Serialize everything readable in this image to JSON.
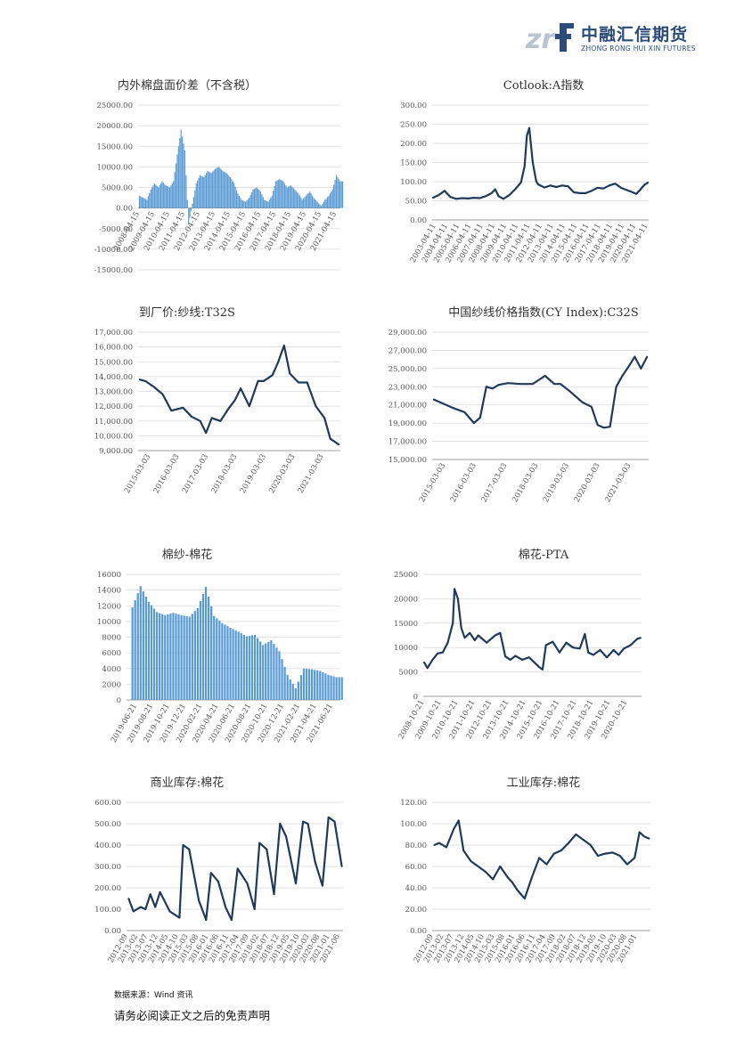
{
  "logo": {
    "mark": "zrf",
    "cn": "中融汇信期货",
    "en": "ZHONG RONG HUI XIN FUTURES"
  },
  "footer": {
    "source": "数据来源：Wind 资讯",
    "disclaimer": "请务必阅读正文之后的免责声明"
  },
  "colors": {
    "line": "#1f3a5a",
    "bar": "#5b9bd5",
    "grid": "#d9d9d9",
    "axis": "#888888"
  },
  "chart_data": [
    {
      "type": "bar",
      "title": "内外棉盘面价差（不含税）",
      "y_ticks": [
        "25000.00",
        "20000.00",
        "15000.00",
        "10000.00",
        "5000.00",
        "0.00",
        "-5000.00",
        "-10000.00",
        "-15000.00"
      ],
      "ylim": [
        -15000,
        25000
      ],
      "x_tick_labels": [
        "2008-04-15",
        "2009-04-15",
        "2010-04-15",
        "2011-04-15",
        "2012-04-15",
        "2013-04-15",
        "2014-04-15",
        "2015-04-15",
        "2016-04-15",
        "2017-04-15",
        "2018-04-15",
        "2019-04-15",
        "2020-04-15",
        "2021-04-15"
      ],
      "x": [
        "2008-04",
        "2008-07",
        "2008-10",
        "2009-01",
        "2009-04",
        "2009-07",
        "2009-10",
        "2010-01",
        "2010-04",
        "2010-07",
        "2010-10",
        "2011-01",
        "2011-04",
        "2011-07",
        "2011-10",
        "2012-01",
        "2012-04",
        "2012-07",
        "2012-10",
        "2013-01",
        "2013-04",
        "2013-07",
        "2013-10",
        "2014-01",
        "2014-04",
        "2014-07",
        "2014-10",
        "2015-01",
        "2015-04",
        "2015-07",
        "2015-10",
        "2016-01",
        "2016-04",
        "2016-07",
        "2016-10",
        "2017-01",
        "2017-04",
        "2017-07",
        "2017-10",
        "2018-01",
        "2018-04",
        "2018-07",
        "2018-10",
        "2019-01",
        "2019-04",
        "2019-07",
        "2019-10",
        "2020-01",
        "2020-04",
        "2020-07",
        "2020-10",
        "2021-01",
        "2021-04",
        "2021-07"
      ],
      "values": [
        3000,
        2500,
        2000,
        4500,
        6000,
        5000,
        6500,
        5500,
        5000,
        6500,
        13000,
        19000,
        14000,
        -4000,
        1000,
        6000,
        8000,
        7500,
        9000,
        8500,
        9500,
        10000,
        9000,
        8500,
        7500,
        6000,
        3500,
        2000,
        1500,
        2500,
        4500,
        5000,
        4000,
        2000,
        1500,
        3000,
        6500,
        7000,
        6500,
        5000,
        5500,
        4500,
        3500,
        2000,
        3000,
        4000,
        2500,
        1500,
        500,
        2000,
        3000,
        4500,
        8000,
        6500
      ]
    },
    {
      "type": "line",
      "title": "Cotlook:A指数",
      "y_ticks": [
        "300.00",
        "250.00",
        "200.00",
        "150.00",
        "100.00",
        "50.00",
        "0.00"
      ],
      "ylim": [
        0,
        300
      ],
      "x_tick_labels": [
        "2003-04-11",
        "2004-04-11",
        "2005-04-11",
        "2006-04-11",
        "2007-04-11",
        "2008-04-11",
        "2009-04-11",
        "2010-04-11",
        "2011-04-11",
        "2012-04-11",
        "2013-04-11",
        "2014-04-11",
        "2015-04-11",
        "2016-04-11",
        "2017-04-11",
        "2018-04-11",
        "2019-04-11",
        "2020-04-11",
        "2021-04-11"
      ],
      "x": [
        2003.0,
        2003.5,
        2004.0,
        2004.5,
        2005.0,
        2005.5,
        2006.0,
        2006.5,
        2007.0,
        2007.5,
        2008.0,
        2008.3,
        2008.6,
        2009.0,
        2009.5,
        2010.0,
        2010.5,
        2010.8,
        2011.0,
        2011.2,
        2011.5,
        2011.8,
        2012.0,
        2012.5,
        2013.0,
        2013.5,
        2014.0,
        2014.5,
        2015.0,
        2015.5,
        2016.0,
        2016.5,
        2017.0,
        2017.5,
        2018.0,
        2018.5,
        2019.0,
        2019.5,
        2020.0,
        2020.3,
        2020.6,
        2021.0,
        2021.3
      ],
      "values": [
        58,
        65,
        76,
        60,
        55,
        57,
        56,
        58,
        57,
        62,
        70,
        80,
        62,
        55,
        65,
        80,
        98,
        140,
        220,
        240,
        150,
        100,
        92,
        85,
        90,
        86,
        90,
        88,
        72,
        70,
        70,
        76,
        84,
        82,
        90,
        95,
        84,
        78,
        72,
        68,
        78,
        92,
        98
      ]
    },
    {
      "type": "line",
      "title": "到厂价:纱线:T32S",
      "y_ticks": [
        "17,000.00",
        "16,000.00",
        "15,000.00",
        "14,000.00",
        "13,000.00",
        "12,000.00",
        "11,000.00",
        "10,000.00",
        "9,000.00"
      ],
      "ylim": [
        9000,
        17000
      ],
      "x_tick_labels": [
        "2015-03-03",
        "2016-03-03",
        "2017-03-03",
        "2018-03-03",
        "2019-03-03",
        "2020-03-03",
        "2021-03-03"
      ],
      "x": [
        2014.8,
        2015.0,
        2015.3,
        2015.6,
        2015.9,
        2016.1,
        2016.3,
        2016.6,
        2016.9,
        2017.1,
        2017.3,
        2017.6,
        2017.9,
        2018.1,
        2018.3,
        2018.6,
        2018.9,
        2019.1,
        2019.4,
        2019.6,
        2019.8,
        2020.0,
        2020.3,
        2020.6,
        2020.9,
        2021.2,
        2021.4,
        2021.7
      ],
      "values": [
        13800,
        13700,
        13300,
        12800,
        11700,
        11800,
        11900,
        11300,
        11000,
        10200,
        11200,
        11000,
        11900,
        12400,
        13200,
        12000,
        13700,
        13700,
        14100,
        15000,
        16100,
        14200,
        13600,
        13600,
        12000,
        11200,
        9800,
        9400
      ]
    },
    {
      "type": "line",
      "title": "中国纱线价格指数(CY Index):C32S",
      "y_ticks": [
        "29,000.00",
        "27,000.00",
        "25,000.00",
        "23,000.00",
        "21,000.00",
        "19,000.00",
        "17,000.00",
        "15,000.00"
      ],
      "ylim": [
        15000,
        29000
      ],
      "x_tick_labels": [
        "2015-03-03",
        "2016-03-03",
        "2017-03-03",
        "2018-03-03",
        "2019-03-03",
        "2020-03-03",
        "2021-03-03"
      ],
      "x": [
        2014.8,
        2015.0,
        2015.4,
        2015.8,
        2016.1,
        2016.3,
        2016.5,
        2016.7,
        2016.9,
        2017.2,
        2017.6,
        2018.0,
        2018.4,
        2018.7,
        2018.9,
        2019.2,
        2019.6,
        2019.9,
        2020.1,
        2020.3,
        2020.5,
        2020.7,
        2020.9,
        2021.1,
        2021.3,
        2021.5,
        2021.7
      ],
      "values": [
        21600,
        21300,
        20700,
        20200,
        19000,
        19600,
        23000,
        22800,
        23200,
        23400,
        23300,
        23300,
        24200,
        23300,
        23300,
        22500,
        21300,
        20800,
        18800,
        18500,
        18600,
        23000,
        24200,
        25200,
        26300,
        25000,
        26300
      ]
    },
    {
      "type": "bar",
      "title": "棉纱-棉花",
      "y_ticks": [
        "16000",
        "14000",
        "12000",
        "10000",
        "8000",
        "6000",
        "4000",
        "2000",
        "0"
      ],
      "ylim": [
        0,
        16000
      ],
      "x_tick_labels": [
        "2019-06-21",
        "2019-08-21",
        "2019-10-21",
        "2019-12-21",
        "2020-02-21",
        "2020-04-21",
        "2020-06-21",
        "2020-08-21",
        "2020-10-21",
        "2020-12-21",
        "2021-02-21",
        "2021-04-21",
        "2021-06-21"
      ],
      "x": [
        "2019-06",
        "2019-07",
        "2019-08",
        "2019-09",
        "2019-10",
        "2019-11",
        "2019-12",
        "2020-01",
        "2020-02",
        "2020-03",
        "2020-04",
        "2020-05",
        "2020-06",
        "2020-07",
        "2020-08",
        "2020-09",
        "2020-10",
        "2020-11",
        "2020-12",
        "2021-01",
        "2021-02",
        "2021-03",
        "2021-04",
        "2021-05",
        "2021-06",
        "2021-07"
      ],
      "values": [
        11800,
        14500,
        12500,
        11200,
        10800,
        11100,
        10800,
        10600,
        11700,
        14400,
        10700,
        9800,
        9200,
        8700,
        8100,
        8300,
        7000,
        7600,
        6200,
        3200,
        1500,
        4000,
        3900,
        3700,
        3200,
        2900
      ]
    },
    {
      "type": "line",
      "title": "棉花-PTA",
      "y_ticks": [
        "25000",
        "20000",
        "15000",
        "10000",
        "5000",
        "0"
      ],
      "ylim": [
        0,
        25000
      ],
      "x_tick_labels": [
        "2008-10-21",
        "2009-10-21",
        "2010-10-21",
        "2011-10-21",
        "2012-10-21",
        "2013-10-21",
        "2014-10-21",
        "2015-10-21",
        "2016-10-21",
        "2017-10-21",
        "2018-10-21",
        "2019-10-21",
        "2020-10-21"
      ],
      "x": [
        2008.8,
        2009.0,
        2009.3,
        2009.6,
        2009.9,
        2010.2,
        2010.5,
        2010.6,
        2010.8,
        2011.0,
        2011.2,
        2011.5,
        2011.8,
        2012.0,
        2012.5,
        2013.0,
        2013.3,
        2013.6,
        2013.9,
        2014.2,
        2014.6,
        2015.0,
        2015.3,
        2015.6,
        2015.8,
        2016.0,
        2016.4,
        2016.8,
        2017.2,
        2017.6,
        2018.0,
        2018.3,
        2018.5,
        2018.8,
        2019.2,
        2019.6,
        2020.0,
        2020.3,
        2020.6,
        2021.0,
        2021.4,
        2021.6
      ],
      "values": [
        7000,
        5800,
        7500,
        8800,
        9000,
        11000,
        15000,
        22000,
        20000,
        14000,
        12000,
        13000,
        11500,
        12500,
        11000,
        12500,
        13000,
        8200,
        7500,
        8300,
        7500,
        8000,
        7000,
        6000,
        5500,
        10500,
        11200,
        9000,
        11000,
        10000,
        9800,
        12800,
        9000,
        8500,
        9500,
        8000,
        9500,
        8500,
        9800,
        10500,
        11800,
        12000
      ]
    },
    {
      "type": "line",
      "title": "商业库存:棉花",
      "y_ticks": [
        "600.00",
        "500.00",
        "400.00",
        "300.00",
        "200.00",
        "100.00",
        "0.00"
      ],
      "ylim": [
        0,
        600
      ],
      "x_tick_labels": [
        "2012-09",
        "2013-02",
        "2013-07",
        "2013-12",
        "2014-05",
        "2014-10",
        "2015-03",
        "2015-08",
        "2016-01",
        "2016-06",
        "2016-11",
        "2017-04",
        "2017-09",
        "2018-02",
        "2018-07",
        "2018-12",
        "2019-05",
        "2019-10",
        "2020-03",
        "2020-08",
        "2021-01",
        "2021-06"
      ],
      "x": [
        2012.7,
        2012.9,
        2013.2,
        2013.4,
        2013.6,
        2013.8,
        2014.0,
        2014.4,
        2014.8,
        2014.95,
        2015.2,
        2015.6,
        2015.9,
        2016.1,
        2016.4,
        2016.7,
        2016.95,
        2017.2,
        2017.6,
        2017.9,
        2018.1,
        2018.4,
        2018.7,
        2018.95,
        2019.2,
        2019.6,
        2019.9,
        2020.1,
        2020.4,
        2020.7,
        2020.95,
        2021.2,
        2021.5
      ],
      "values": [
        150,
        90,
        110,
        100,
        170,
        110,
        180,
        90,
        60,
        400,
        380,
        140,
        50,
        270,
        230,
        110,
        50,
        290,
        220,
        100,
        410,
        380,
        170,
        500,
        440,
        220,
        510,
        500,
        320,
        210,
        530,
        510,
        300
      ]
    },
    {
      "type": "line",
      "title": "工业库存:棉花",
      "y_ticks": [
        "120.00",
        "100.00",
        "80.00",
        "60.00",
        "40.00",
        "20.00",
        "0.00"
      ],
      "ylim": [
        0,
        120
      ],
      "x_tick_labels": [
        "2012-09",
        "2013-02",
        "2013-07",
        "2013-12",
        "2014-05",
        "2014-10",
        "2015-03",
        "2015-08",
        "2016-01",
        "2016-06",
        "2016-11",
        "2017-04",
        "2017-09",
        "2018-02",
        "2018-07",
        "2018-12",
        "2019-05",
        "2019-10",
        "2020-03",
        "2020-08",
        "2021-01"
      ],
      "x": [
        2012.7,
        2012.9,
        2013.2,
        2013.5,
        2013.7,
        2013.9,
        2014.2,
        2014.5,
        2014.8,
        2015.1,
        2015.4,
        2015.7,
        2015.9,
        2016.1,
        2016.4,
        2016.7,
        2017.0,
        2017.3,
        2017.6,
        2017.9,
        2018.2,
        2018.5,
        2018.8,
        2019.1,
        2019.4,
        2019.7,
        2020.0,
        2020.3,
        2020.6,
        2020.9,
        2021.1,
        2021.3,
        2021.5
      ],
      "values": [
        80,
        82,
        78,
        95,
        103,
        75,
        65,
        60,
        55,
        48,
        60,
        50,
        45,
        38,
        30,
        50,
        68,
        62,
        72,
        75,
        82,
        90,
        85,
        80,
        70,
        72,
        73,
        70,
        62,
        68,
        92,
        88,
        86
      ]
    }
  ]
}
